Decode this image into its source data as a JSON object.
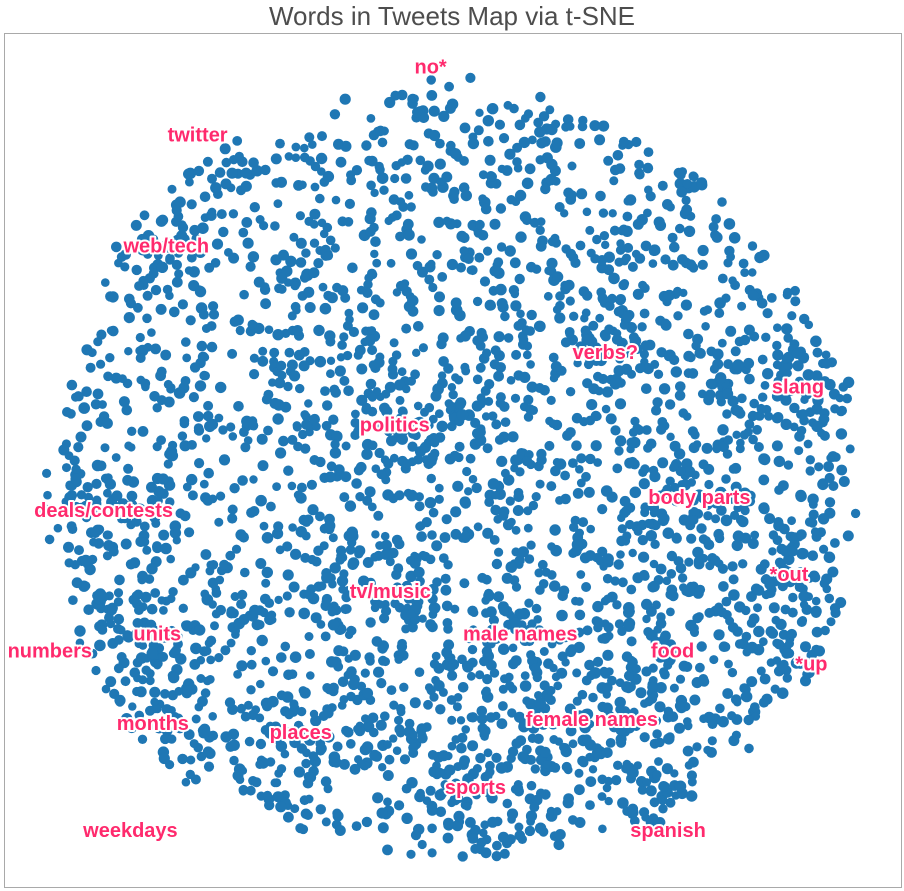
{
  "chart_data": {
    "type": "scatter",
    "title": "Words in Tweets Map via t-SNE",
    "xlabel": "",
    "ylabel": "",
    "grid": false,
    "axis_ticks": false,
    "xlim": [
      -50,
      50
    ],
    "ylim": [
      -50,
      50
    ],
    "point_color": "#1f77b4",
    "label_color": "#ff2a6d",
    "n_points": 3200,
    "cluster_labels": [
      {
        "text": "no*",
        "x": -2.5,
        "y": 46.0
      },
      {
        "text": "twitter",
        "x": -28.5,
        "y": 38.0
      },
      {
        "text": "web/tech",
        "x": -32.0,
        "y": 25.0
      },
      {
        "text": "verbs?",
        "x": 17.0,
        "y": 12.5
      },
      {
        "text": "slang",
        "x": 38.5,
        "y": 8.5
      },
      {
        "text": "politics",
        "x": -6.5,
        "y": 4.0
      },
      {
        "text": "body parts",
        "x": 27.5,
        "y": -4.5
      },
      {
        "text": "deals/contests",
        "x": -39.0,
        "y": -6.0
      },
      {
        "text": "*out",
        "x": 37.5,
        "y": -13.5
      },
      {
        "text": "tv/music",
        "x": -7.0,
        "y": -15.5
      },
      {
        "text": "male names",
        "x": 7.5,
        "y": -20.5
      },
      {
        "text": "units",
        "x": -33.0,
        "y": -20.5
      },
      {
        "text": "numbers",
        "x": -45.0,
        "y": -22.5
      },
      {
        "text": "food",
        "x": 24.5,
        "y": -22.5
      },
      {
        "text": "*up",
        "x": 40.0,
        "y": -24.0
      },
      {
        "text": "months",
        "x": -33.5,
        "y": -31.0
      },
      {
        "text": "places",
        "x": -17.0,
        "y": -32.0
      },
      {
        "text": "female names",
        "x": 15.5,
        "y": -30.5
      },
      {
        "text": "sports",
        "x": 2.5,
        "y": -38.5
      },
      {
        "text": "weekdays",
        "x": -36.0,
        "y": -43.5
      },
      {
        "text": "spanish",
        "x": 24.0,
        "y": -43.5
      }
    ]
  }
}
